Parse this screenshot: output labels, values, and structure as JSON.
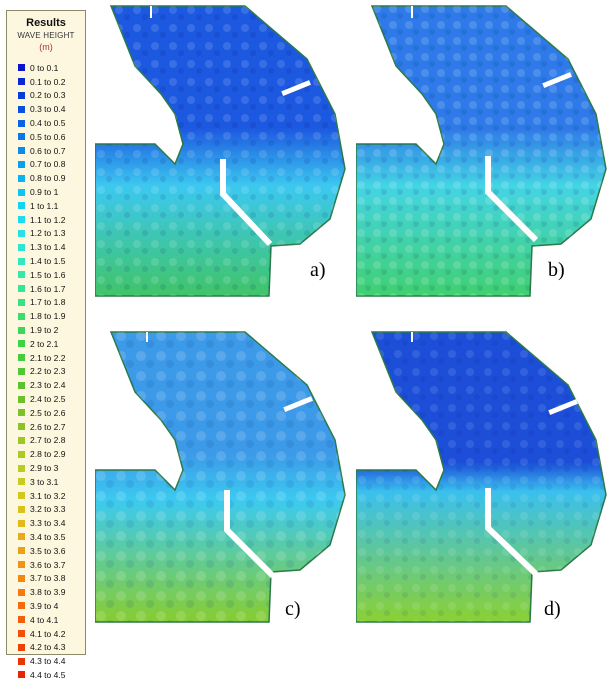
{
  "legend": {
    "title": "Results",
    "subtitle": "WAVE HEIGHT",
    "unit": "(m)",
    "items": [
      {
        "label": "0 to 0.1",
        "color": "#0a14c8"
      },
      {
        "label": "0.1 to 0.2",
        "color": "#0a28d0"
      },
      {
        "label": "0.2 to 0.3",
        "color": "#0a3cd8"
      },
      {
        "label": "0.3 to 0.4",
        "color": "#0a50dc"
      },
      {
        "label": "0.4 to 0.5",
        "color": "#0a64e0"
      },
      {
        "label": "0.5 to 0.6",
        "color": "#0a78e6"
      },
      {
        "label": "0.6 to 0.7",
        "color": "#0a8cea"
      },
      {
        "label": "0.7 to 0.8",
        "color": "#0aa0ee"
      },
      {
        "label": "0.8 to 0.9",
        "color": "#0ab4f2"
      },
      {
        "label": "0.9 to 1",
        "color": "#0ac6f4"
      },
      {
        "label": "1 to 1.1",
        "color": "#14d4f4"
      },
      {
        "label": "1.1 to 1.2",
        "color": "#1edcec"
      },
      {
        "label": "1.2 to 1.3",
        "color": "#28e2e0"
      },
      {
        "label": "1.3 to 1.4",
        "color": "#2ee6d0"
      },
      {
        "label": "1.4 to 1.5",
        "color": "#32e8bc"
      },
      {
        "label": "1.5 to 1.6",
        "color": "#34e8a8"
      },
      {
        "label": "1.6 to 1.7",
        "color": "#36e694"
      },
      {
        "label": "1.7 to 1.8",
        "color": "#38e280"
      },
      {
        "label": "1.8 to 1.9",
        "color": "#3ade6c"
      },
      {
        "label": "1.9 to 2",
        "color": "#3cd85a"
      },
      {
        "label": "2 to 2.1",
        "color": "#3ed248"
      },
      {
        "label": "2.1 to 2.2",
        "color": "#46cc3c"
      },
      {
        "label": "2.2 to 2.3",
        "color": "#52c634"
      },
      {
        "label": "2.3 to 2.4",
        "color": "#5ec230"
      },
      {
        "label": "2.4 to 2.5",
        "color": "#6cc02c"
      },
      {
        "label": "2.5 to 2.6",
        "color": "#7cc02a"
      },
      {
        "label": "2.6 to 2.7",
        "color": "#8cc428"
      },
      {
        "label": "2.7 to 2.8",
        "color": "#9cc826"
      },
      {
        "label": "2.8 to 2.9",
        "color": "#acca24"
      },
      {
        "label": "2.9 to 3",
        "color": "#bccc22"
      },
      {
        "label": "3 to 3.1",
        "color": "#c8cc20"
      },
      {
        "label": "3.1 to 3.2",
        "color": "#d2c81e"
      },
      {
        "label": "3.2 to 3.3",
        "color": "#dac21c"
      },
      {
        "label": "3.3 to 3.4",
        "color": "#e2b81a"
      },
      {
        "label": "3.4 to 3.5",
        "color": "#e8ac18"
      },
      {
        "label": "3.5 to 3.6",
        "color": "#eca016"
      },
      {
        "label": "3.6 to 3.7",
        "color": "#f09414"
      },
      {
        "label": "3.7 to 3.8",
        "color": "#f28812"
      },
      {
        "label": "3.8 to 3.9",
        "color": "#f47a10"
      },
      {
        "label": "3.9 to 4",
        "color": "#f46c0e"
      },
      {
        "label": "4 to 4.1",
        "color": "#f25e0c"
      },
      {
        "label": "4.1 to 4.2",
        "color": "#f0500a"
      },
      {
        "label": "4.2 to 4.3",
        "color": "#ec4208"
      },
      {
        "label": "4.3 to 4.4",
        "color": "#e83406"
      },
      {
        "label": "4.4 to 4.5",
        "color": "#e42604"
      }
    ]
  },
  "panels": [
    {
      "label": "a)",
      "harbour_color": "#1c58e0",
      "mid_color": "#3cc8f0",
      "sea_color": "#40c468"
    },
    {
      "label": "b)",
      "harbour_color": "#2e7ae8",
      "mid_color": "#44d4e4",
      "sea_color": "#40d070"
    },
    {
      "label": "c)",
      "harbour_color": "#3c9ae8",
      "mid_color": "#3ccaf0",
      "sea_color": "#88cc30"
    },
    {
      "label": "d)",
      "harbour_color": "#1c4ed8",
      "mid_color": "#3ac0ee",
      "sea_color": "#8ad034"
    }
  ]
}
